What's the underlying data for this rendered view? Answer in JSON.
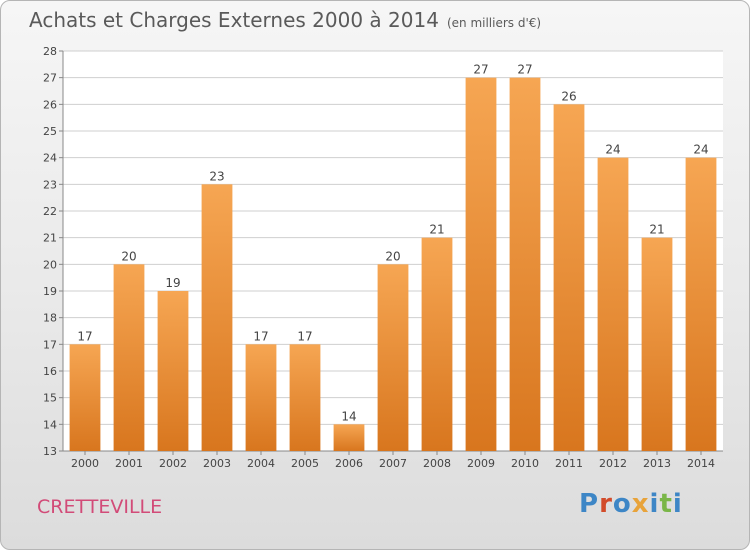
{
  "header": {
    "title": "Achats et Charges Externes 2000 à 2014",
    "subtitle": "(en milliers d'€)"
  },
  "commune": "CRETTEVILLE",
  "logo": {
    "text": "Proxiti",
    "letter_colors": [
      "#3d86c6",
      "#d24b2a",
      "#3d86c6",
      "#e8a33a",
      "#3d86c6",
      "#7ab648",
      "#3d86c6"
    ]
  },
  "chart_data": {
    "type": "bar",
    "title": "Achats et Charges Externes 2000 à 2014",
    "subtitle": "(en milliers d'€)",
    "categories": [
      "2000",
      "2001",
      "2002",
      "2003",
      "2004",
      "2005",
      "2006",
      "2007",
      "2008",
      "2009",
      "2010",
      "2011",
      "2012",
      "2013",
      "2014"
    ],
    "values": [
      17,
      20,
      19,
      23,
      17,
      17,
      14,
      20,
      21,
      27,
      27,
      26,
      24,
      21,
      24
    ],
    "ylim": [
      13,
      28
    ],
    "yticks": [
      13,
      14,
      15,
      16,
      17,
      18,
      19,
      20,
      21,
      22,
      23,
      24,
      25,
      26,
      27,
      28
    ],
    "grid": true,
    "bar_color_top": "#f6a653",
    "bar_color_bottom": "#d8761e",
    "data_labels": true
  }
}
